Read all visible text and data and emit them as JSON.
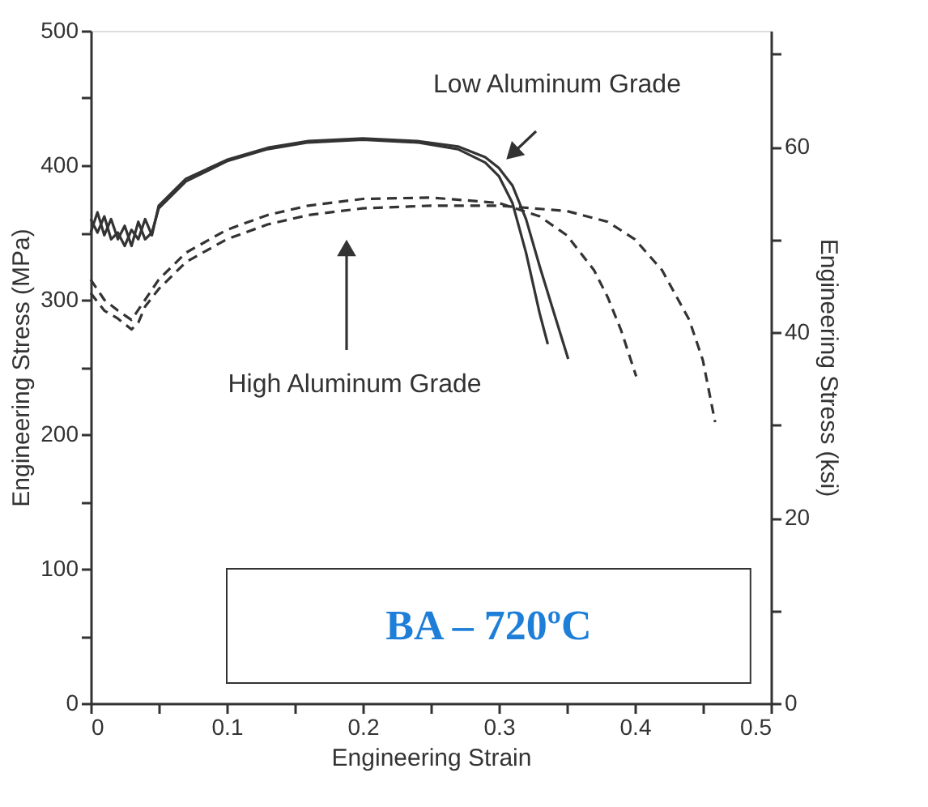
{
  "chart_data": {
    "type": "line",
    "xlabel": "Engineering Strain",
    "ylabel": "Engineering Stress (MPa)",
    "y2label": "Engineering Stress (ksi)",
    "xlim": [
      0,
      0.5
    ],
    "xticks": [
      0,
      {
        "value": 0.05,
        "label": null
      },
      0.1,
      {
        "value": 0.15,
        "label": null
      },
      0.2,
      {
        "value": 0.25,
        "label": null
      },
      0.3,
      {
        "value": 0.35,
        "label": null
      },
      0.4,
      {
        "value": 0.45,
        "label": null
      },
      0.5
    ],
    "ylim": [
      0,
      500
    ],
    "yticks": [
      0,
      {
        "value": 50,
        "label": null
      },
      100,
      {
        "value": 150,
        "label": null
      },
      200,
      {
        "value": 250,
        "label": null
      },
      300,
      {
        "value": 350,
        "label": null
      },
      400,
      {
        "value": 450,
        "label": null
      },
      500
    ],
    "y2lim": [
      0,
      72.52
    ],
    "y2ticks": [
      0,
      {
        "value": 10,
        "label": null
      },
      20,
      {
        "value": 30,
        "label": null
      },
      40,
      {
        "value": 50,
        "label": null
      },
      60,
      {
        "value": 70,
        "label": null
      }
    ],
    "grid": false,
    "marker": "none",
    "series": [
      {
        "color": "#333333",
        "line_style": "solid",
        "x": [
          0,
          0.005,
          0.01,
          0.015,
          0.02,
          0.025,
          0.03,
          0.035,
          0.04,
          0.045,
          0.05,
          0.07,
          0.1,
          0.13,
          0.16,
          0.2,
          0.24,
          0.27,
          0.29,
          0.3,
          0.31,
          0.32,
          0.33,
          0.336
        ],
        "values": [
          350,
          365,
          348,
          360,
          345,
          355,
          340,
          358,
          345,
          350,
          368,
          388,
          403,
          412,
          417,
          419,
          417,
          412,
          402,
          392,
          372,
          335,
          290,
          267
        ]
      },
      {
        "color": "#333333",
        "line_style": "solid",
        "x": [
          0,
          0.005,
          0.01,
          0.015,
          0.02,
          0.025,
          0.03,
          0.035,
          0.04,
          0.045,
          0.05,
          0.07,
          0.1,
          0.13,
          0.16,
          0.2,
          0.24,
          0.27,
          0.29,
          0.3,
          0.31,
          0.32,
          0.33,
          0.34,
          0.351
        ],
        "values": [
          360,
          350,
          362,
          345,
          350,
          340,
          352,
          345,
          360,
          348,
          370,
          390,
          404,
          413,
          418,
          420,
          418,
          414,
          406,
          398,
          385,
          360,
          325,
          292,
          256
        ]
      },
      {
        "color": "#333333",
        "line_style": "dashed",
        "x": [
          0,
          0.01,
          0.02,
          0.03,
          0.04,
          0.05,
          0.07,
          0.1,
          0.13,
          0.16,
          0.2,
          0.25,
          0.3,
          0.33,
          0.35,
          0.37,
          0.38,
          0.39,
          0.401
        ],
        "values": [
          315,
          300,
          292,
          285,
          300,
          315,
          335,
          352,
          363,
          370,
          375,
          376,
          372,
          362,
          348,
          322,
          302,
          277,
          243
        ]
      },
      {
        "color": "#333333",
        "line_style": "dashed",
        "x": [
          0,
          0.01,
          0.02,
          0.03,
          0.035,
          0.04,
          0.05,
          0.07,
          0.1,
          0.13,
          0.16,
          0.2,
          0.25,
          0.3,
          0.35,
          0.38,
          0.4,
          0.42,
          0.44,
          0.45,
          0.459
        ],
        "values": [
          305,
          292,
          286,
          278,
          283,
          295,
          308,
          328,
          345,
          356,
          363,
          368,
          370,
          370,
          366,
          358,
          345,
          322,
          285,
          255,
          209
        ]
      }
    ],
    "annotations": [
      "Low Aluminum Grade",
      "High Aluminum Grade",
      "BA – 720ºC"
    ]
  }
}
